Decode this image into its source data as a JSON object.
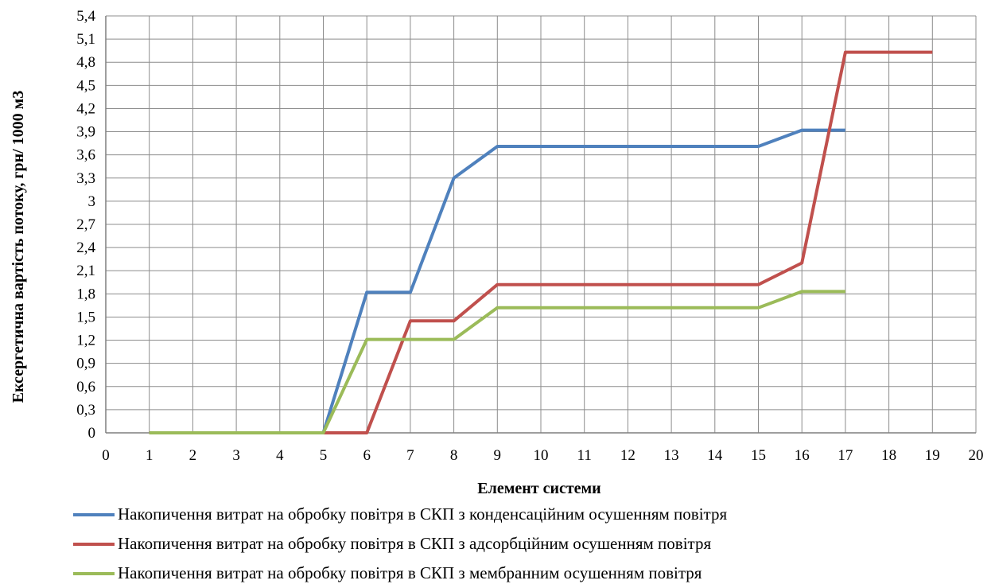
{
  "chart_data": {
    "type": "line",
    "xlabel": "Елемент системи",
    "ylabel": "Ексергетична вартість потоку, грн/ 1000 м3",
    "xlim": [
      0,
      20
    ],
    "ylim": [
      0,
      5.4
    ],
    "x_ticks": [
      "0",
      "1",
      "2",
      "3",
      "4",
      "5",
      "6",
      "7",
      "8",
      "9",
      "10",
      "11",
      "12",
      "13",
      "14",
      "15",
      "16",
      "17",
      "18",
      "19",
      "20"
    ],
    "y_ticks": [
      "0",
      "0,3",
      "0,6",
      "0,9",
      "1,2",
      "1,5",
      "1,8",
      "2,1",
      "2,4",
      "2,7",
      "3",
      "3,3",
      "3,6",
      "3,9",
      "4,2",
      "4,5",
      "4,8",
      "5,1",
      "5,4"
    ],
    "grid": true,
    "legend_position": "bottom",
    "series": [
      {
        "name": "Накопичення витрат на обробку повітря в СКП з конденсаційним осушенням повітря",
        "color": "#4f81bd",
        "x": [
          1,
          2,
          3,
          4,
          5,
          6,
          7,
          8,
          9,
          15,
          16,
          17
        ],
        "y": [
          0,
          0,
          0,
          0,
          0,
          1.82,
          1.82,
          3.3,
          3.71,
          3.71,
          3.92,
          3.92
        ]
      },
      {
        "name": "Накопичення витрат на обробку повітря в СКП з адсорбційним осушенням повітря",
        "color": "#c0504d",
        "x": [
          1,
          2,
          3,
          4,
          5,
          6,
          7,
          8,
          9,
          15,
          16,
          17,
          19
        ],
        "y": [
          0,
          0,
          0,
          0,
          0,
          0,
          1.45,
          1.45,
          1.92,
          1.92,
          2.2,
          4.93,
          4.93
        ]
      },
      {
        "name": "Накопичення витрат на обробку повітря в СКП з мембранним осушенням повітря",
        "color": "#9bbb59",
        "x": [
          1,
          2,
          3,
          4,
          5,
          6,
          7,
          8,
          9,
          15,
          16,
          17
        ],
        "y": [
          0,
          0,
          0,
          0,
          0,
          1.21,
          1.21,
          1.21,
          1.62,
          1.62,
          1.83,
          1.83
        ]
      }
    ]
  }
}
